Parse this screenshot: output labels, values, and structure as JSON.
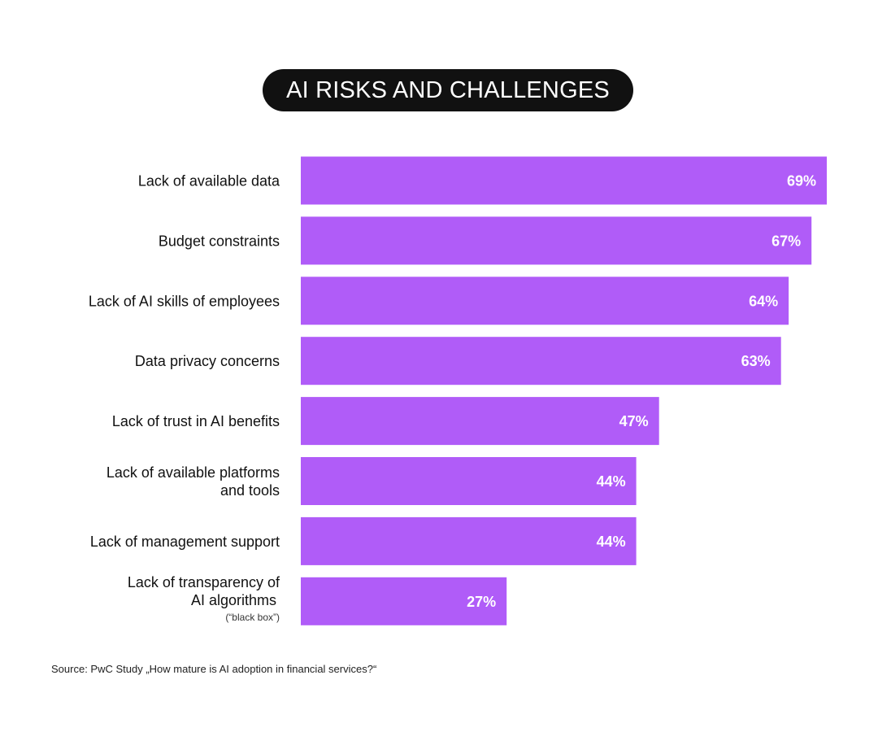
{
  "chart_data": {
    "type": "bar",
    "orientation": "horizontal",
    "title": "AI RISKS AND CHALLENGES",
    "categories": [
      {
        "lines": [
          "Lack of available data"
        ],
        "note": ""
      },
      {
        "lines": [
          "Budget constraints"
        ],
        "note": ""
      },
      {
        "lines": [
          "Lack of AI skills of employees"
        ],
        "note": ""
      },
      {
        "lines": [
          "Data privacy concerns"
        ],
        "note": ""
      },
      {
        "lines": [
          "Lack of trust in AI benefits"
        ],
        "note": ""
      },
      {
        "lines": [
          "Lack of available platforms",
          "and tools"
        ],
        "note": ""
      },
      {
        "lines": [
          "Lack of management support"
        ],
        "note": ""
      },
      {
        "lines": [
          "Lack of transparency of",
          "AI algorithms"
        ],
        "note": "(“black box”)"
      }
    ],
    "values": [
      69,
      67,
      64,
      63,
      47,
      44,
      44,
      27
    ],
    "value_labels": [
      "69%",
      "67%",
      "64%",
      "63%",
      "47%",
      "44%",
      "44%",
      "27%"
    ],
    "unit": "%",
    "xlim": [
      0,
      69
    ],
    "bar_color": "#b05cf8",
    "label_color": "#ffffff",
    "grid": false,
    "legend": "none"
  },
  "source": "Source: PwC Study „How mature is AI adoption in financial services?“"
}
